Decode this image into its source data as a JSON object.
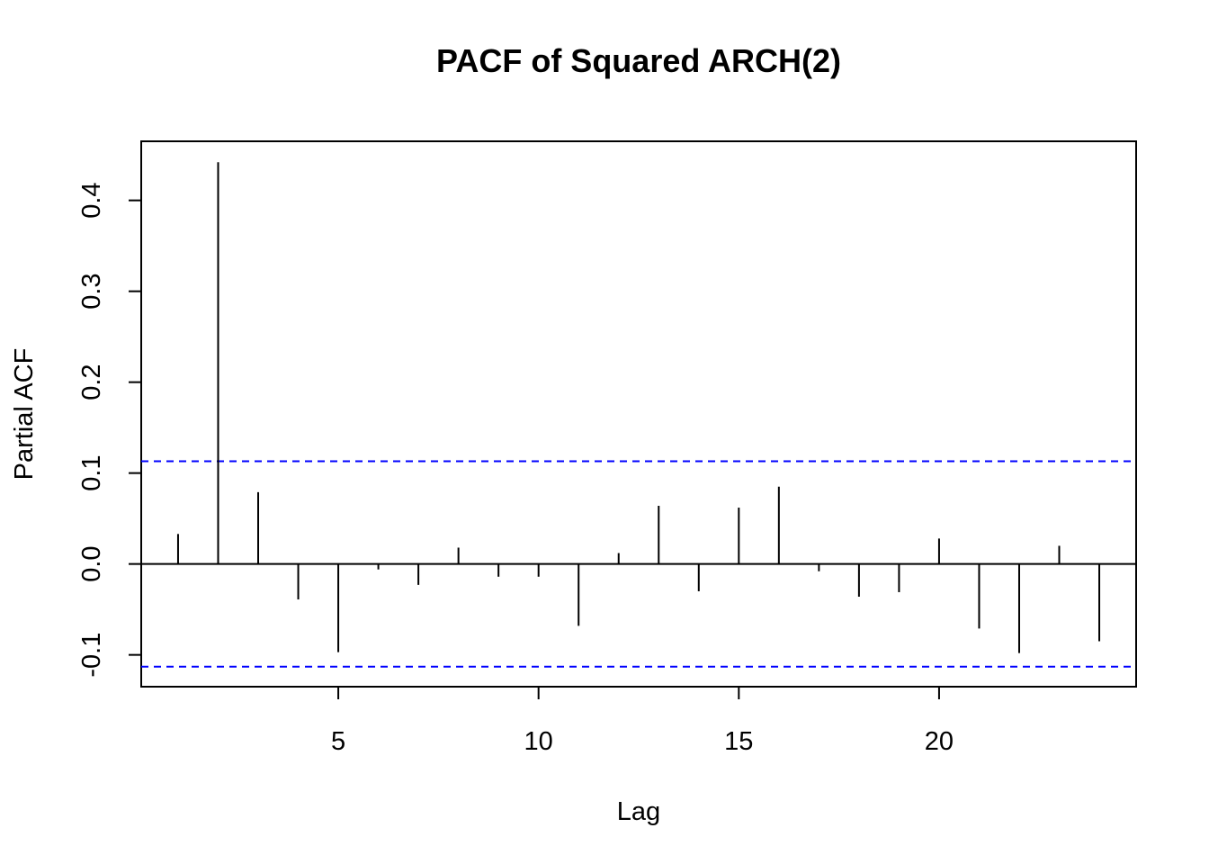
{
  "chart_data": {
    "type": "bar",
    "subtype": "pacf-spike",
    "title": "PACF of Squared ARCH(2)",
    "xlabel": "Lag",
    "ylabel": "Partial ACF",
    "x": [
      1,
      2,
      3,
      4,
      5,
      6,
      7,
      8,
      9,
      10,
      11,
      12,
      13,
      14,
      15,
      16,
      17,
      18,
      19,
      20,
      21,
      22,
      23,
      24
    ],
    "values": [
      0.033,
      0.442,
      0.079,
      -0.039,
      -0.097,
      -0.006,
      -0.023,
      0.018,
      -0.014,
      -0.014,
      -0.068,
      0.012,
      0.064,
      -0.03,
      0.062,
      0.085,
      -0.008,
      -0.036,
      -0.031,
      0.028,
      -0.071,
      -0.098,
      0.02,
      -0.085
    ],
    "confidence_bound": 0.113,
    "xlim": [
      0.08,
      24.92
    ],
    "ylim": [
      -0.135,
      0.465
    ],
    "x_ticks": [
      5,
      10,
      15,
      20
    ],
    "x_tick_labels": [
      "5",
      "10",
      "15",
      "20"
    ],
    "y_ticks": [
      -0.1,
      0.0,
      0.1,
      0.2,
      0.3,
      0.4
    ],
    "y_tick_labels": [
      "-0.1",
      "0.0",
      "0.1",
      "0.2",
      "0.3",
      "0.4"
    ],
    "grid": false,
    "colors": {
      "spike": "#000000",
      "zero_line": "#000000",
      "confidence_line": "#0000ff",
      "frame": "#000000"
    }
  }
}
